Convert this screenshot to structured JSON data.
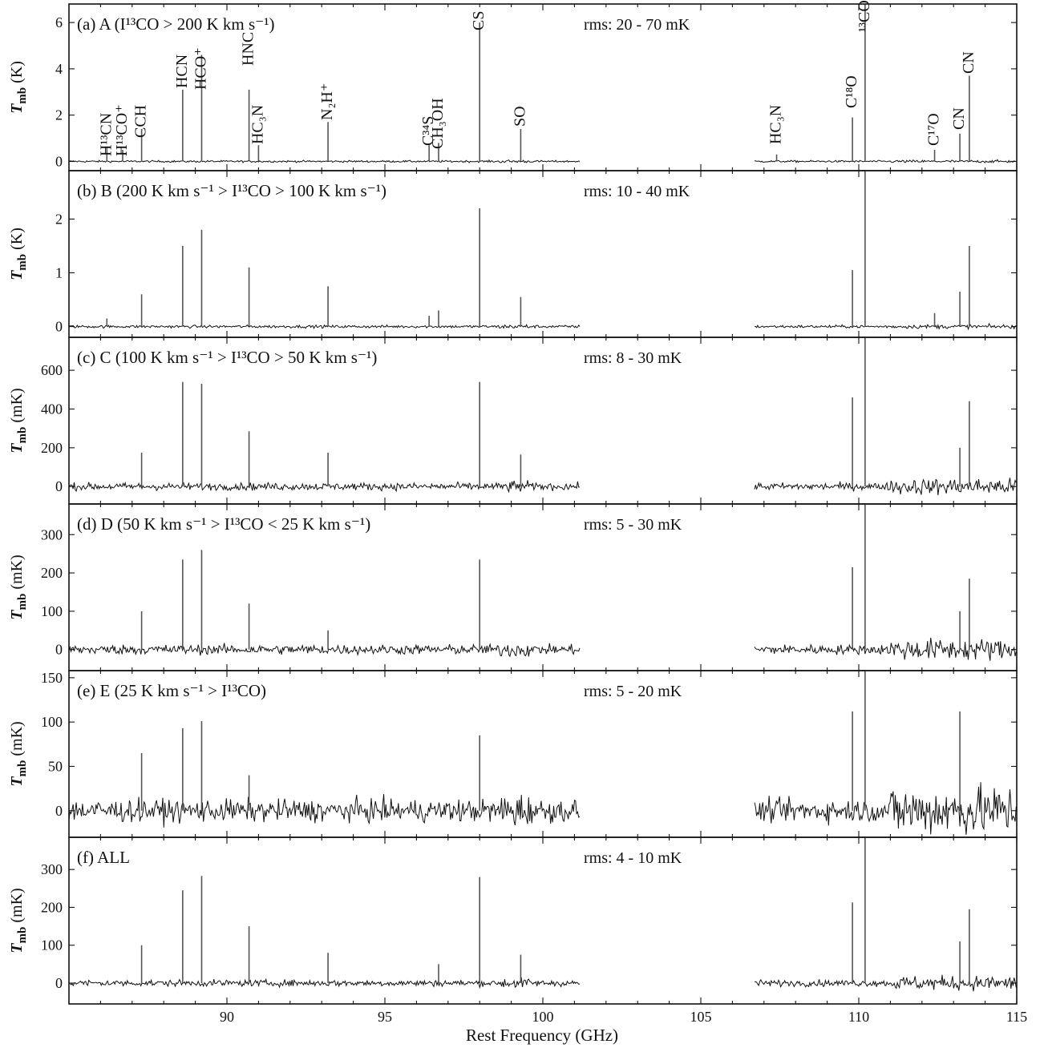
{
  "chart_data": {
    "type": "line",
    "xlabel": "Rest Frequency (GHz)",
    "xlim": [
      85,
      115
    ],
    "x_ticks": [
      90,
      95,
      100,
      105,
      110,
      115
    ],
    "x_tick_labels": [
      "90",
      "95",
      "100",
      "105",
      "110",
      "115"
    ],
    "coverage_gaps": [
      [
        101.2,
        106.7
      ]
    ],
    "line_labels": [
      {
        "text": "H¹³CN",
        "x": 86.2
      },
      {
        "text": "H¹³CO⁺",
        "x": 86.7
      },
      {
        "text": "CCH",
        "x": 87.3
      },
      {
        "text": "HCN",
        "x": 88.6
      },
      {
        "text": "HCO⁺",
        "x": 89.2
      },
      {
        "text": "HNC",
        "x": 90.7
      },
      {
        "text": "HC₃N",
        "x": 91.0
      },
      {
        "text": "N₂H⁺",
        "x": 93.2
      },
      {
        "text": "C³⁴S",
        "x": 96.4
      },
      {
        "text": "CH₃OH",
        "x": 96.7
      },
      {
        "text": "CS",
        "x": 98.0
      },
      {
        "text": "SO",
        "x": 99.3
      },
      {
        "text": "HC₃N",
        "x": 107.4
      },
      {
        "text": "C¹⁸O",
        "x": 109.8
      },
      {
        "text": "¹³CO",
        "x": 110.2
      },
      {
        "text": "C¹⁷O",
        "x": 112.4
      },
      {
        "text": "CN",
        "x": 113.2
      },
      {
        "text": "CN",
        "x": 113.5
      }
    ],
    "panels": [
      {
        "title": "(a) A (I¹³CO > 200 K km s⁻¹)",
        "rms": "rms: 20 - 70 mK",
        "ylabel": "Tmb (K)",
        "ylim": [
          -0.4,
          6.8
        ],
        "y_ticks": [
          0,
          2,
          4,
          6
        ],
        "y_tick_labels": [
          "0",
          "2",
          "4",
          "6"
        ],
        "noise": 0.04,
        "lines": [
          {
            "x": 86.2,
            "value": 0.6
          },
          {
            "x": 86.7,
            "value": 0.5
          },
          {
            "x": 87.3,
            "value": 1.4
          },
          {
            "x": 88.6,
            "value": 3.1
          },
          {
            "x": 89.2,
            "value": 4.6
          },
          {
            "x": 90.7,
            "value": 3.1
          },
          {
            "x": 91.0,
            "value": 0.7
          },
          {
            "x": 93.2,
            "value": 1.7
          },
          {
            "x": 96.4,
            "value": 0.7
          },
          {
            "x": 96.7,
            "value": 0.8
          },
          {
            "x": 98.0,
            "value": 6.0
          },
          {
            "x": 99.3,
            "value": 1.4
          },
          {
            "x": 107.4,
            "value": 0.3
          },
          {
            "x": 109.8,
            "value": 1.9
          },
          {
            "x": 110.2,
            "value": 6.8
          },
          {
            "x": 112.4,
            "value": 0.5
          },
          {
            "x": 113.2,
            "value": 1.2
          },
          {
            "x": 113.5,
            "value": 3.7
          }
        ]
      },
      {
        "title": "(b) B (200 K km s⁻¹ > I¹³CO > 100 K km s⁻¹)",
        "rms": "rms: 10 - 40 mK",
        "ylabel": "Tmb (K)",
        "ylim": [
          -0.2,
          2.9
        ],
        "y_ticks": [
          0,
          1,
          2
        ],
        "y_tick_labels": [
          "0",
          "1",
          "2"
        ],
        "noise": 0.025,
        "lines": [
          {
            "x": 86.2,
            "value": 0.15
          },
          {
            "x": 87.3,
            "value": 0.6
          },
          {
            "x": 88.6,
            "value": 1.5
          },
          {
            "x": 89.2,
            "value": 1.8
          },
          {
            "x": 90.7,
            "value": 1.1
          },
          {
            "x": 93.2,
            "value": 0.75
          },
          {
            "x": 96.4,
            "value": 0.2
          },
          {
            "x": 96.7,
            "value": 0.3
          },
          {
            "x": 98.0,
            "value": 2.2
          },
          {
            "x": 99.3,
            "value": 0.55
          },
          {
            "x": 109.8,
            "value": 1.05
          },
          {
            "x": 110.2,
            "value": 2.9
          },
          {
            "x": 112.4,
            "value": 0.25
          },
          {
            "x": 113.2,
            "value": 0.65
          },
          {
            "x": 113.5,
            "value": 1.5
          }
        ]
      },
      {
        "title": "(c) C (100 K km s⁻¹ > I¹³CO > 50 K km s⁻¹)",
        "rms": "rms: 8 - 30 mK",
        "ylabel": "Tmb (mK)",
        "ylim": [
          -90,
          770
        ],
        "y_ticks": [
          0,
          200,
          400,
          600
        ],
        "y_tick_labels": [
          "0",
          "200",
          "400",
          "600"
        ],
        "noise": 18,
        "lines": [
          {
            "x": 87.3,
            "value": 175
          },
          {
            "x": 88.6,
            "value": 540
          },
          {
            "x": 89.2,
            "value": 530
          },
          {
            "x": 90.7,
            "value": 285
          },
          {
            "x": 93.2,
            "value": 175
          },
          {
            "x": 98.0,
            "value": 540
          },
          {
            "x": 99.3,
            "value": 165
          },
          {
            "x": 109.8,
            "value": 460
          },
          {
            "x": 110.2,
            "value": 770
          },
          {
            "x": 113.2,
            "value": 200
          },
          {
            "x": 113.5,
            "value": 440
          }
        ]
      },
      {
        "title": "(d) D (50 K km s⁻¹ > I¹³CO < 25 K km s⁻¹)",
        "rms": "rms: 5 - 30 mK",
        "ylabel": "Tmb (mK)",
        "ylim": [
          -55,
          380
        ],
        "y_ticks": [
          0,
          100,
          200,
          300
        ],
        "y_tick_labels": [
          "0",
          "100",
          "200",
          "300"
        ],
        "noise": 12,
        "lines": [
          {
            "x": 87.3,
            "value": 100
          },
          {
            "x": 88.6,
            "value": 235
          },
          {
            "x": 89.2,
            "value": 260
          },
          {
            "x": 90.7,
            "value": 120
          },
          {
            "x": 93.2,
            "value": 50
          },
          {
            "x": 98.0,
            "value": 235
          },
          {
            "x": 109.8,
            "value": 215
          },
          {
            "x": 110.2,
            "value": 380
          },
          {
            "x": 113.2,
            "value": 100
          },
          {
            "x": 113.5,
            "value": 185
          }
        ]
      },
      {
        "title": "(e) E (25 K km s⁻¹ > I¹³CO)",
        "rms": "rms: 5 - 20 mK",
        "ylabel": "Tmb (mK)",
        "ylim": [
          -30,
          158
        ],
        "y_ticks": [
          0,
          50,
          100,
          150
        ],
        "y_tick_labels": [
          "0",
          "50",
          "100",
          "150"
        ],
        "noise": 12,
        "lines": [
          {
            "x": 87.3,
            "value": 65
          },
          {
            "x": 88.6,
            "value": 93
          },
          {
            "x": 89.2,
            "value": 101
          },
          {
            "x": 90.7,
            "value": 40
          },
          {
            "x": 98.0,
            "value": 85
          },
          {
            "x": 109.8,
            "value": 112
          },
          {
            "x": 110.2,
            "value": 158
          },
          {
            "x": 113.2,
            "value": 112
          }
        ]
      },
      {
        "title": "(f) ALL",
        "rms": "rms: 4 - 10 mK",
        "ylabel": "Tmb (mK)",
        "ylim": [
          -55,
          385
        ],
        "y_ticks": [
          0,
          100,
          200,
          300
        ],
        "y_tick_labels": [
          "0",
          "100",
          "200",
          "300"
        ],
        "noise": 8,
        "lines": [
          {
            "x": 87.3,
            "value": 100
          },
          {
            "x": 88.6,
            "value": 245
          },
          {
            "x": 89.2,
            "value": 283
          },
          {
            "x": 90.7,
            "value": 150
          },
          {
            "x": 93.2,
            "value": 80
          },
          {
            "x": 96.7,
            "value": 50
          },
          {
            "x": 98.0,
            "value": 280
          },
          {
            "x": 99.3,
            "value": 75
          },
          {
            "x": 109.8,
            "value": 213
          },
          {
            "x": 110.2,
            "value": 385
          },
          {
            "x": 113.2,
            "value": 110
          },
          {
            "x": 113.5,
            "value": 195
          }
        ]
      }
    ]
  }
}
